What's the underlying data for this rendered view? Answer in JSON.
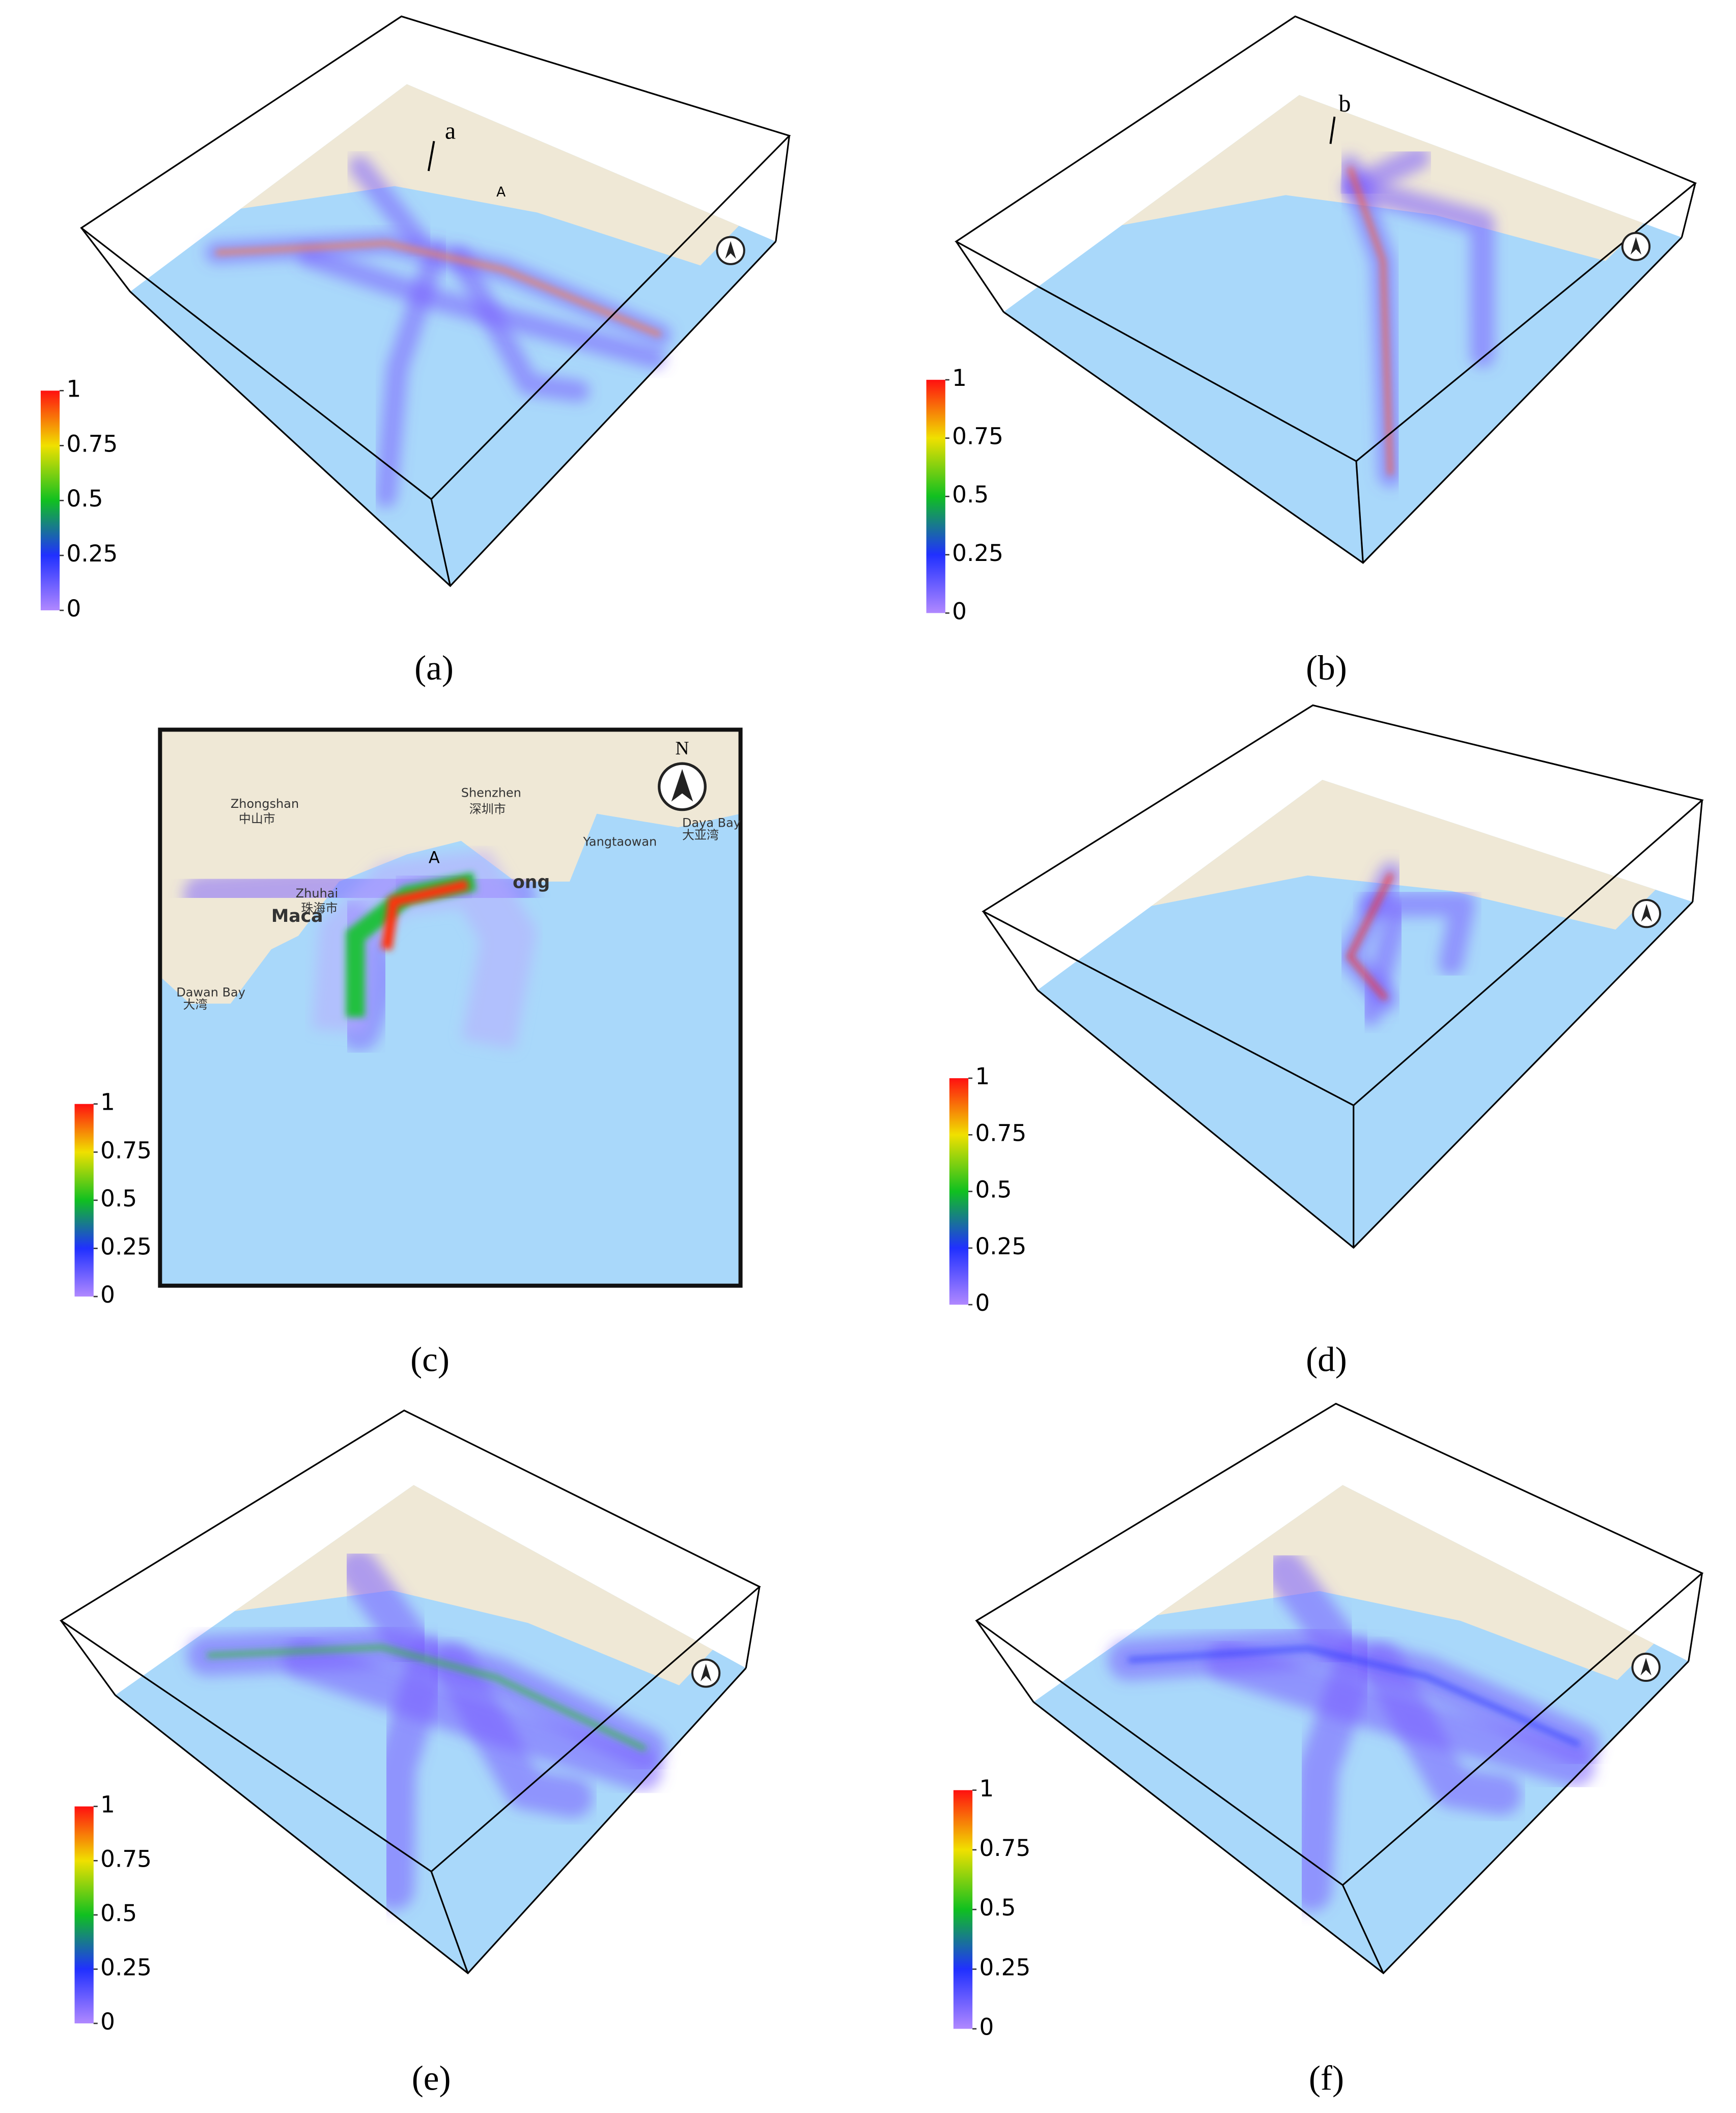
{
  "colorbar": {
    "ticks": [
      0,
      0.25,
      0.5,
      0.75,
      1
    ]
  },
  "panels": [
    {
      "caption": "(a)",
      "annotations": [
        "a",
        "A"
      ]
    },
    {
      "caption": "(b)",
      "annotations": [
        "b"
      ]
    },
    {
      "caption": "(c)",
      "annotations": [
        "A",
        "N"
      ],
      "map_labels": [
        "Zhongshan",
        "中山市",
        "Shenzhen",
        "深圳市",
        "Zhuhai",
        "珠海市",
        "Maca",
        "ong",
        "Yangtaowan",
        "Daya Bay",
        "大亚湾",
        "Dawan Bay",
        "大湾"
      ]
    },
    {
      "caption": "(d)"
    },
    {
      "caption": "(e)"
    },
    {
      "caption": "(f)"
    }
  ]
}
